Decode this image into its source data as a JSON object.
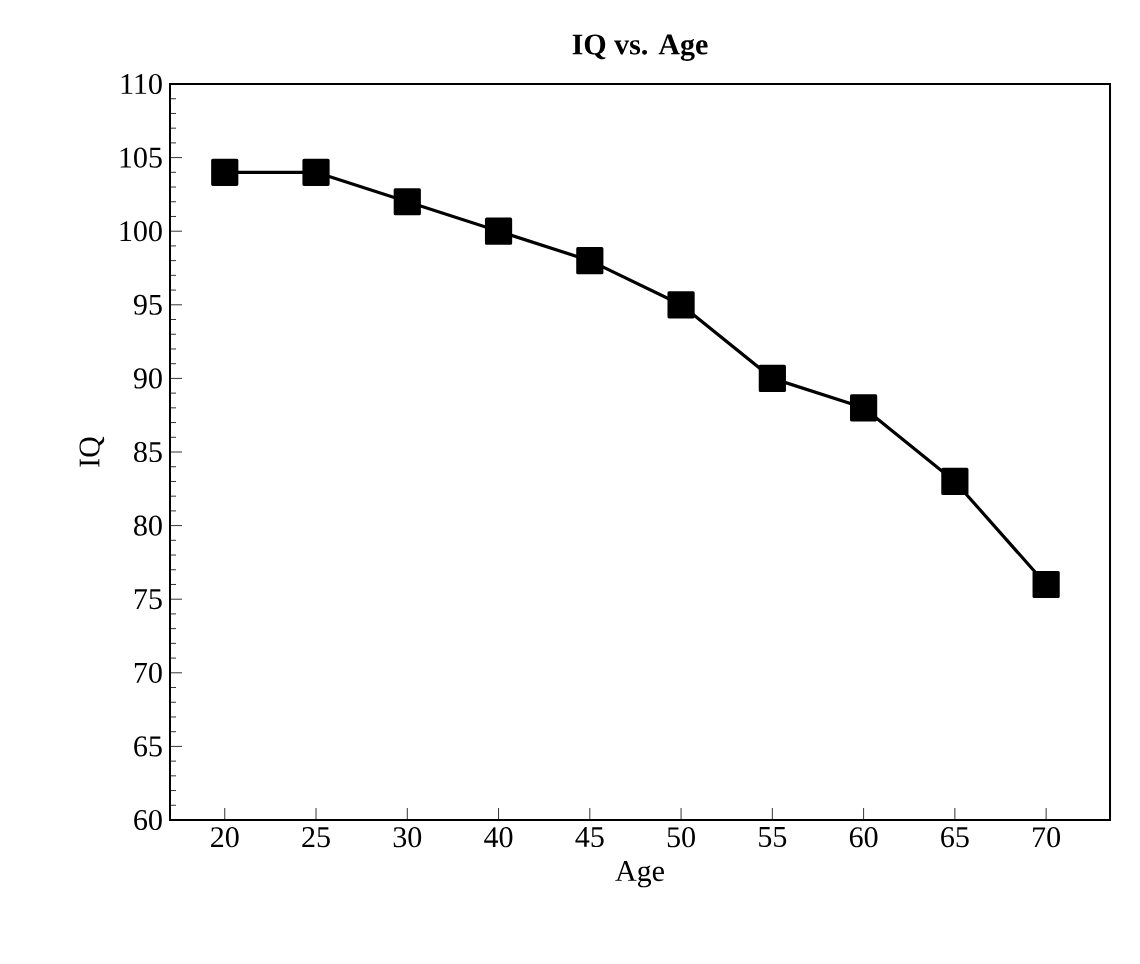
{
  "chart_data": {
    "type": "line",
    "title": "IQ vs. Age",
    "xlabel": "Age",
    "ylabel": "IQ",
    "categories": [
      "20",
      "25",
      "30",
      "40",
      "45",
      "50",
      "55",
      "60",
      "65",
      "70"
    ],
    "series": [
      {
        "color": "#000000",
        "values": [
          104,
          104,
          102,
          100,
          98,
          95,
          90,
          88,
          83,
          76
        ]
      }
    ],
    "ylim": [
      60,
      110
    ],
    "yticks": [
      60,
      65,
      70,
      75,
      80,
      85,
      90,
      95,
      100,
      105,
      110
    ],
    "marker": "square",
    "line_style": "solid"
  }
}
